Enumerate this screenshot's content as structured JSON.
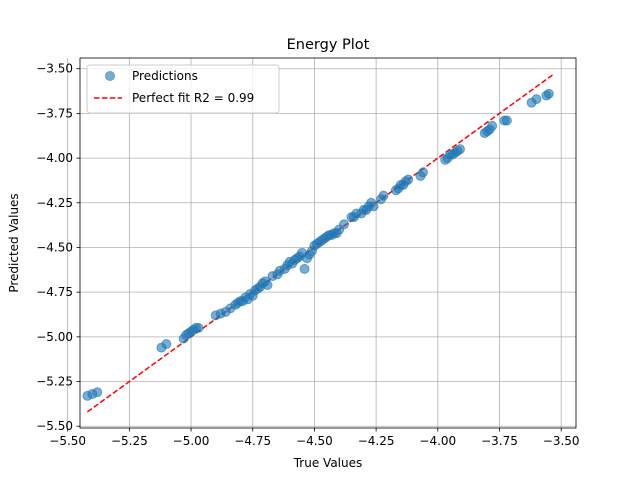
{
  "chart_data": {
    "type": "scatter",
    "title": "Energy Plot",
    "xlabel": "True Values",
    "ylabel": "Predicted Values",
    "xlim": [
      -5.45,
      -3.44
    ],
    "ylim": [
      -5.51,
      -3.44
    ],
    "xticks": [
      -5.5,
      -5.25,
      -5.0,
      -4.75,
      -4.5,
      -4.25,
      -4.0,
      -3.75,
      -3.5
    ],
    "yticks": [
      -5.5,
      -5.25,
      -5.0,
      -4.75,
      -4.5,
      -4.25,
      -4.0,
      -3.75,
      -3.5
    ],
    "xtick_labels": [
      "−5.50",
      "−5.25",
      "−5.00",
      "−4.75",
      "−4.50",
      "−4.25",
      "−4.00",
      "−3.75",
      "−3.50"
    ],
    "ytick_labels": [
      "−5.50",
      "−5.25",
      "−5.00",
      "−4.75",
      "−4.50",
      "−4.25",
      "−4.00",
      "−3.75",
      "−3.50"
    ],
    "grid": true,
    "legend_position": "top-left",
    "series": [
      {
        "name": "Predictions",
        "kind": "scatter",
        "color": "#1f77b4",
        "opacity": 0.6,
        "x": [
          -5.42,
          -5.4,
          -5.38,
          -5.12,
          -5.1,
          -5.03,
          -5.02,
          -5.01,
          -5.0,
          -4.99,
          -4.98,
          -4.97,
          -4.9,
          -4.88,
          -4.86,
          -4.84,
          -4.82,
          -4.81,
          -4.8,
          -4.79,
          -4.78,
          -4.77,
          -4.76,
          -4.75,
          -4.74,
          -4.73,
          -4.72,
          -4.71,
          -4.7,
          -4.69,
          -4.67,
          -4.65,
          -4.64,
          -4.62,
          -4.61,
          -4.6,
          -4.59,
          -4.58,
          -4.57,
          -4.56,
          -4.55,
          -4.54,
          -4.53,
          -4.52,
          -4.51,
          -4.5,
          -4.49,
          -4.48,
          -4.47,
          -4.46,
          -4.45,
          -4.44,
          -4.43,
          -4.42,
          -4.41,
          -4.4,
          -4.38,
          -4.35,
          -4.34,
          -4.33,
          -4.31,
          -4.3,
          -4.29,
          -4.28,
          -4.27,
          -4.26,
          -4.23,
          -4.22,
          -4.17,
          -4.16,
          -4.15,
          -4.14,
          -4.13,
          -4.12,
          -4.07,
          -4.06,
          -3.97,
          -3.96,
          -3.95,
          -3.94,
          -3.93,
          -3.92,
          -3.91,
          -3.81,
          -3.8,
          -3.79,
          -3.78,
          -3.73,
          -3.72,
          -3.62,
          -3.6,
          -3.56,
          -3.55
        ],
        "y": [
          -5.33,
          -5.32,
          -5.31,
          -5.06,
          -5.04,
          -5.01,
          -4.99,
          -4.98,
          -4.97,
          -4.96,
          -4.95,
          -4.95,
          -4.88,
          -4.87,
          -4.86,
          -4.84,
          -4.82,
          -4.81,
          -4.8,
          -4.8,
          -4.78,
          -4.79,
          -4.76,
          -4.77,
          -4.74,
          -4.73,
          -4.72,
          -4.7,
          -4.69,
          -4.71,
          -4.66,
          -4.65,
          -4.63,
          -4.62,
          -4.6,
          -4.58,
          -4.59,
          -4.57,
          -4.56,
          -4.55,
          -4.53,
          -4.62,
          -4.56,
          -4.54,
          -4.52,
          -4.49,
          -4.48,
          -4.47,
          -4.46,
          -4.45,
          -4.44,
          -4.43,
          -4.43,
          -4.42,
          -4.42,
          -4.4,
          -4.37,
          -4.33,
          -4.33,
          -4.31,
          -4.31,
          -4.29,
          -4.29,
          -4.27,
          -4.25,
          -4.27,
          -4.23,
          -4.21,
          -4.18,
          -4.17,
          -4.15,
          -4.15,
          -4.13,
          -4.12,
          -4.1,
          -4.08,
          -4.01,
          -4.0,
          -3.98,
          -3.98,
          -3.97,
          -3.96,
          -3.95,
          -3.86,
          -3.85,
          -3.84,
          -3.82,
          -3.79,
          -3.79,
          -3.69,
          -3.67,
          -3.65,
          -3.64
        ]
      },
      {
        "name": "Perfect fit R2 = 0.99",
        "kind": "line",
        "color": "#ff0000",
        "dash": "dashed",
        "x": [
          -5.42,
          -3.53
        ],
        "y": [
          -5.42,
          -3.53
        ]
      }
    ]
  }
}
